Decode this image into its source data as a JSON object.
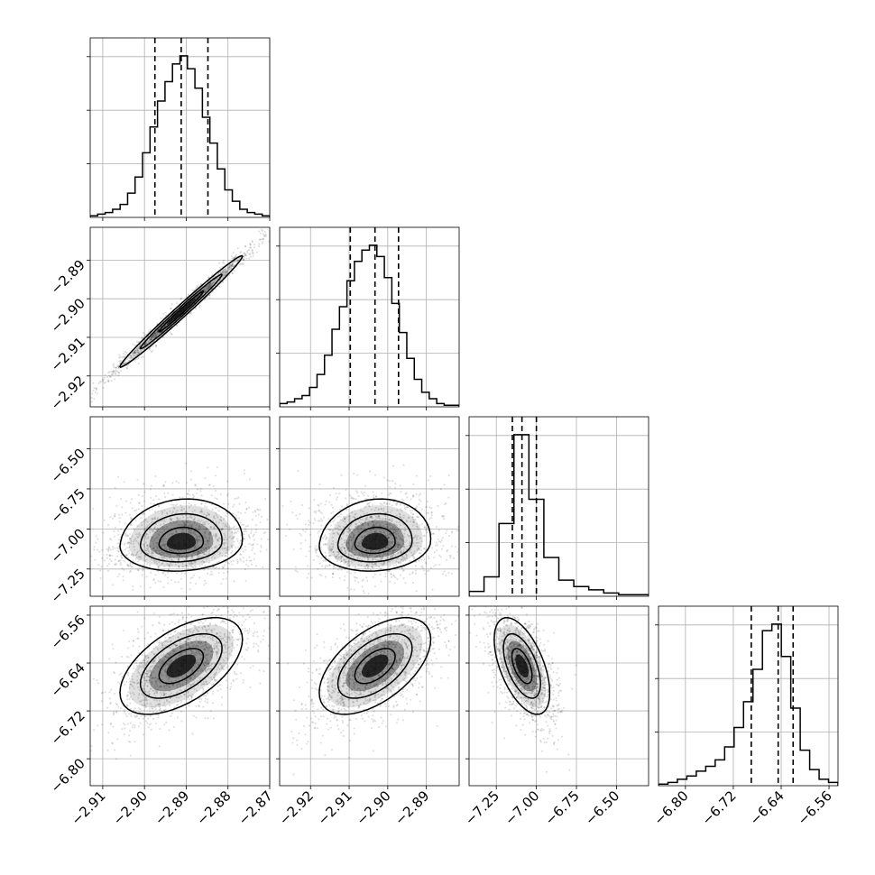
{
  "chart_data": {
    "type": "corner",
    "grid": true,
    "parameters": [
      {
        "name": "",
        "range": [
          -2.913,
          -2.87
        ],
        "ticks": [
          -2.91,
          -2.9,
          -2.89,
          -2.88,
          -2.87
        ],
        "tick_labels": [
          "−2.91",
          "−2.90",
          "−2.89",
          "−2.88",
          "−2.87"
        ],
        "quantiles": [
          -2.8975,
          -2.8912,
          -2.8848
        ]
      },
      {
        "name": "",
        "range": [
          -2.928,
          -2.8815
        ],
        "ticks": [
          -2.92,
          -2.91,
          -2.9,
          -2.89
        ],
        "tick_labels": [
          "−2.92",
          "−2.91",
          "−2.90",
          "−2.89"
        ],
        "quantiles": [
          -2.9097,
          -2.9033,
          -2.8972
        ]
      },
      {
        "name": "",
        "range": [
          -7.42,
          -6.3
        ],
        "ticks": [
          -7.25,
          -7.0,
          -6.75,
          -6.5
        ],
        "tick_labels": [
          "−7.25",
          "−7.00",
          "−6.75",
          "−6.50"
        ],
        "quantiles": [
          -7.15,
          -7.09,
          -7.0
        ]
      },
      {
        "name": "",
        "range": [
          -6.845,
          -6.545
        ],
        "ticks": [
          -6.8,
          -6.72,
          -6.64,
          -6.56
        ],
        "tick_labels": [
          "−6.80",
          "−6.72",
          "−6.64",
          "−6.56"
        ],
        "quantiles": [
          -6.69,
          -6.645,
          -6.62
        ]
      }
    ],
    "histograms": [
      [
        1,
        2,
        3,
        5,
        8,
        15,
        25,
        40,
        56,
        72,
        84,
        95,
        100,
        92,
        80,
        62,
        46,
        30,
        17,
        10,
        5,
        3,
        2,
        1
      ],
      [
        2,
        3,
        5,
        7,
        12,
        20,
        32,
        48,
        62,
        78,
        90,
        97,
        100,
        93,
        80,
        64,
        46,
        30,
        17,
        9,
        5,
        2,
        1,
        1
      ],
      [
        3,
        12,
        45,
        100,
        60,
        24,
        10,
        6,
        4,
        2,
        1,
        1
      ],
      [
        1,
        2,
        4,
        6,
        9,
        12,
        16,
        24,
        36,
        52,
        72,
        96,
        100,
        80,
        48,
        22,
        10,
        4,
        2
      ]
    ],
    "correlations": [
      [
        1,
        0.99,
        0.1,
        0.55
      ],
      [
        0.99,
        1,
        0.1,
        0.55
      ],
      [
        0.1,
        0.1,
        1,
        -0.55
      ],
      [
        0.55,
        0.55,
        -0.55,
        1
      ]
    ],
    "annotations": []
  }
}
